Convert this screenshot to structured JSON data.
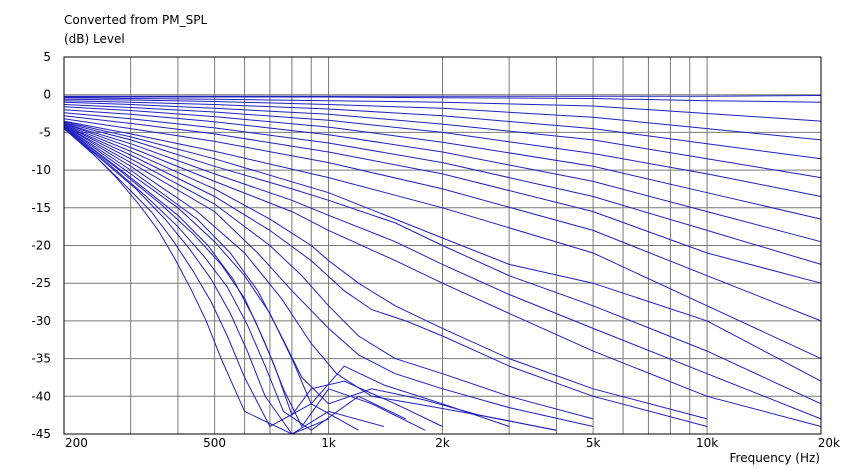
{
  "chart_data": {
    "type": "line",
    "title": "Converted from PM_SPL",
    "ylabel": "(dB)  Level",
    "xlabel": "Frequency  (Hz)",
    "xscale": "log",
    "xlim": [
      200,
      20000
    ],
    "ylim": [
      -45,
      5
    ],
    "ytick_labels": [
      "5",
      "0",
      "-5",
      "-10",
      "-15",
      "-20",
      "-25",
      "-30",
      "-35",
      "-40",
      "-45"
    ],
    "ytick_values": [
      5,
      0,
      -5,
      -10,
      -15,
      -20,
      -25,
      -30,
      -35,
      -40,
      -45
    ],
    "xtick_labels": [
      "200",
      "500",
      "1k",
      "2k",
      "5k",
      "10k",
      "20k"
    ],
    "xtick_values": [
      200,
      500,
      1000,
      2000,
      5000,
      10000,
      20000
    ],
    "grid": true,
    "series_color": "#2020c0",
    "series": [
      {
        "x": [
          200,
          300,
          500,
          1000,
          2000,
          5000,
          10000,
          20000
        ],
        "y": [
          -0.2,
          -0.2,
          -0.2,
          -0.2,
          -0.2,
          -0.2,
          -0.2,
          -0.1
        ]
      },
      {
        "x": [
          200,
          300,
          500,
          1000,
          2000,
          5000,
          10000,
          20000
        ],
        "y": [
          -0.3,
          -0.3,
          -0.3,
          -0.3,
          -0.4,
          -0.5,
          -0.8,
          -1.0
        ]
      },
      {
        "x": [
          200,
          300,
          500,
          1000,
          2000,
          5000,
          10000,
          20000
        ],
        "y": [
          -0.4,
          -0.5,
          -0.6,
          -0.8,
          -1.0,
          -1.5,
          -2.5,
          -3.5
        ]
      },
      {
        "x": [
          200,
          300,
          500,
          1000,
          2000,
          5000,
          10000,
          20000
        ],
        "y": [
          -0.6,
          -0.7,
          -0.9,
          -1.3,
          -1.8,
          -3.0,
          -4.5,
          -6.0
        ]
      },
      {
        "x": [
          200,
          300,
          500,
          1000,
          2000,
          5000,
          10000,
          20000
        ],
        "y": [
          -0.8,
          -1.0,
          -1.3,
          -1.9,
          -2.8,
          -4.5,
          -6.5,
          -8.5
        ]
      },
      {
        "x": [
          200,
          300,
          500,
          1000,
          2000,
          5000,
          10000,
          20000
        ],
        "y": [
          -1.0,
          -1.3,
          -1.8,
          -2.6,
          -3.9,
          -6.0,
          -8.5,
          -11.0
        ]
      },
      {
        "x": [
          200,
          300,
          500,
          1000,
          2000,
          5000,
          10000,
          20000
        ],
        "y": [
          -1.3,
          -1.7,
          -2.3,
          -3.4,
          -5.0,
          -7.8,
          -10.5,
          -13.5
        ]
      },
      {
        "x": [
          200,
          300,
          500,
          1000,
          2000,
          5000,
          10000,
          20000
        ],
        "y": [
          -1.6,
          -2.1,
          -2.9,
          -4.3,
          -6.3,
          -9.5,
          -13.0,
          -16.5
        ]
      },
      {
        "x": [
          200,
          300,
          500,
          1000,
          2000,
          5000,
          10000,
          20000
        ],
        "y": [
          -2.0,
          -2.6,
          -3.6,
          -5.3,
          -7.6,
          -11.5,
          -15.5,
          -19.5
        ]
      },
      {
        "x": [
          200,
          300,
          500,
          1000,
          2000,
          5000,
          10000,
          20000
        ],
        "y": [
          -2.4,
          -3.2,
          -4.4,
          -6.4,
          -9.0,
          -13.5,
          -18.0,
          -22.5
        ]
      },
      {
        "x": [
          200,
          300,
          500,
          1000,
          2000,
          5000,
          10000,
          20000
        ],
        "y": [
          -2.8,
          -3.8,
          -5.2,
          -7.6,
          -10.5,
          -15.5,
          -21.0,
          -25.0
        ]
      },
      {
        "x": [
          200,
          300,
          500,
          1000,
          2000,
          5000,
          10000,
          20000
        ],
        "y": [
          -3.2,
          -4.5,
          -6.2,
          -9.0,
          -12.5,
          -18.0,
          -24.0,
          -30.0
        ]
      },
      {
        "x": [
          200,
          300,
          500,
          1000,
          2000,
          5000,
          10000,
          20000
        ],
        "y": [
          -3.5,
          -5.2,
          -7.5,
          -11.0,
          -15.0,
          -21.0,
          -28.0,
          -35.0
        ]
      },
      {
        "x": [
          200,
          300,
          500,
          1000,
          1500,
          2000,
          3000,
          5000,
          10000,
          20000
        ],
        "y": [
          -3.6,
          -5.6,
          -8.5,
          -13.0,
          -16.5,
          -19.0,
          -22.5,
          -25.0,
          -30.0,
          -38.0
        ]
      },
      {
        "x": [
          200,
          300,
          500,
          800,
          1000,
          1500,
          2000,
          3000,
          5000,
          10000,
          20000
        ],
        "y": [
          -3.7,
          -6.0,
          -9.5,
          -12.5,
          -14.0,
          -17.0,
          -20.0,
          -24.0,
          -28.0,
          -34.0,
          -41.0
        ]
      },
      {
        "x": [
          200,
          300,
          500,
          800,
          1000,
          1500,
          2000,
          3000,
          5000,
          10000,
          20000
        ],
        "y": [
          -3.8,
          -6.5,
          -10.5,
          -14.0,
          -16.0,
          -19.5,
          -22.5,
          -26.5,
          -31.0,
          -37.0,
          -43.0
        ]
      },
      {
        "x": [
          200,
          300,
          500,
          800,
          1000,
          1500,
          2000,
          3000,
          5000,
          10000,
          20000
        ],
        "y": [
          -3.8,
          -7.0,
          -11.5,
          -15.5,
          -18.0,
          -22.0,
          -25.0,
          -29.0,
          -34.0,
          -40.0,
          -44.0
        ]
      },
      {
        "x": [
          200,
          300,
          500,
          700,
          900,
          1000,
          1200,
          1500,
          2000,
          3000,
          5000,
          10000
        ],
        "y": [
          -3.9,
          -7.5,
          -12.5,
          -16.5,
          -20.0,
          -22.0,
          -25.0,
          -28.0,
          -31.0,
          -35.0,
          -39.0,
          -43.0
        ]
      },
      {
        "x": [
          200,
          300,
          500,
          700,
          900,
          1100,
          1300,
          1600,
          2000,
          3000,
          5000,
          10000
        ],
        "y": [
          -4.0,
          -8.0,
          -13.5,
          -18.0,
          -22.0,
          -26.0,
          -28.5,
          -30.0,
          -32.0,
          -36.0,
          -40.0,
          -44.0
        ]
      },
      {
        "x": [
          200,
          300,
          500,
          700,
          850,
          1000,
          1200,
          1500,
          2000,
          3000,
          5000
        ],
        "y": [
          -4.0,
          -8.5,
          -14.5,
          -20.0,
          -24.0,
          -28.0,
          -32.0,
          -35.0,
          -37.0,
          -40.0,
          -43.0
        ]
      },
      {
        "x": [
          200,
          300,
          500,
          650,
          800,
          1000,
          1200,
          1500,
          2000,
          3000,
          5000
        ],
        "y": [
          -4.1,
          -9.0,
          -15.5,
          -21.0,
          -26.0,
          -31.0,
          -34.5,
          -37.0,
          -39.0,
          -41.5,
          -44.0
        ]
      },
      {
        "x": [
          200,
          300,
          450,
          600,
          750,
          900,
          1050,
          1300,
          1700,
          2500,
          4000
        ],
        "y": [
          -4.1,
          -9.5,
          -15.5,
          -21.0,
          -27.0,
          -33.0,
          -37.0,
          -40.0,
          -41.0,
          -42.5,
          -44.5
        ]
      },
      {
        "x": [
          200,
          300,
          450,
          550,
          650,
          750,
          850,
          1000,
          1300,
          1800,
          2500,
          4000
        ],
        "y": [
          -4.2,
          -10.0,
          -16.5,
          -21.0,
          -26.0,
          -32.0,
          -37.5,
          -41.0,
          -39.0,
          -40.5,
          -42.5,
          -44.5
        ]
      },
      {
        "x": [
          200,
          300,
          400,
          500,
          600,
          700,
          800,
          900,
          1100,
          1400,
          2000,
          3000
        ],
        "y": [
          -4.2,
          -10.5,
          -15.0,
          -19.5,
          -24.0,
          -29.0,
          -35.0,
          -41.0,
          -36.0,
          -38.5,
          -41.0,
          -44.0
        ]
      },
      {
        "x": [
          200,
          300,
          400,
          480,
          560,
          640,
          720,
          800,
          900,
          1100,
          1500,
          2000
        ],
        "y": [
          -4.3,
          -11.0,
          -16.0,
          -20.0,
          -24.5,
          -30.0,
          -36.0,
          -42.5,
          -39.0,
          -38.0,
          -41.0,
          -44.0
        ]
      },
      {
        "x": [
          200,
          280,
          360,
          440,
          520,
          600,
          680,
          760,
          850,
          1000,
          1300,
          1800
        ],
        "y": [
          -4.3,
          -10.0,
          -14.5,
          -18.5,
          -22.5,
          -27.0,
          -33.0,
          -39.0,
          -44.0,
          -39.0,
          -41.0,
          -44.5
        ]
      },
      {
        "x": [
          200,
          260,
          330,
          400,
          470,
          540,
          610,
          680,
          760,
          900,
          1200,
          1600
        ],
        "y": [
          -4.4,
          -9.0,
          -13.5,
          -17.5,
          -21.5,
          -25.5,
          -30.5,
          -36.0,
          -42.0,
          -44.5,
          -40.0,
          -43.0
        ]
      },
      {
        "x": [
          200,
          250,
          310,
          370,
          430,
          490,
          550,
          610,
          680,
          800,
          1000,
          1400
        ],
        "y": [
          -4.4,
          -8.5,
          -12.5,
          -16.5,
          -20.5,
          -24.5,
          -29.0,
          -34.0,
          -40.0,
          -45.0,
          -42.0,
          -44.0
        ]
      },
      {
        "x": [
          200,
          240,
          290,
          340,
          390,
          440,
          490,
          540,
          600,
          700,
          900,
          1200
        ],
        "y": [
          -4.5,
          -8.0,
          -12.0,
          -15.5,
          -19.5,
          -23.5,
          -27.5,
          -32.0,
          -37.5,
          -44.0,
          -41.0,
          -44.5
        ]
      },
      {
        "x": [
          200,
          235,
          275,
          315,
          355,
          395,
          435,
          475,
          520,
          600,
          800,
          1000
        ],
        "y": [
          -4.5,
          -7.5,
          -11.0,
          -14.5,
          -18.0,
          -22.0,
          -26.0,
          -30.0,
          -35.0,
          -42.0,
          -45.0,
          -43.0
        ]
      }
    ]
  }
}
